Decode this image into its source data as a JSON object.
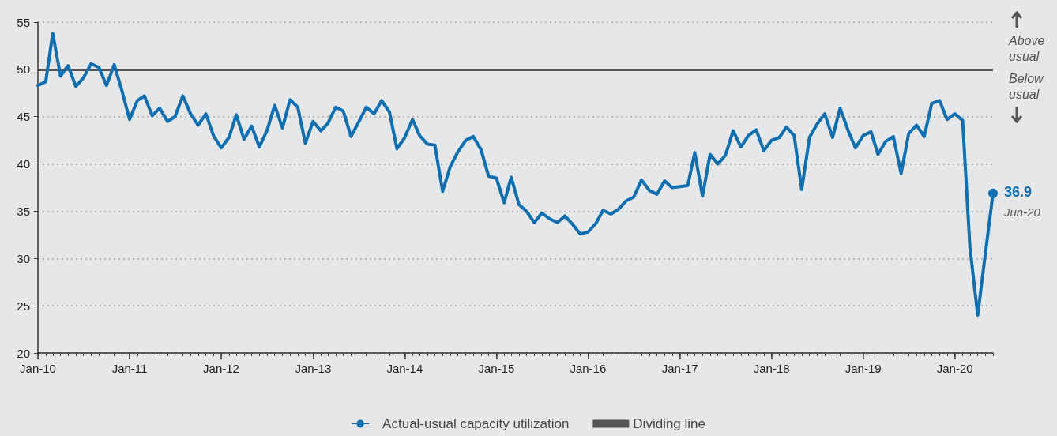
{
  "chart_data": {
    "type": "line",
    "x": [
      "2010-01",
      "2010-02",
      "2010-03",
      "2010-04",
      "2010-05",
      "2010-06",
      "2010-07",
      "2010-08",
      "2010-09",
      "2010-10",
      "2010-11",
      "2010-12",
      "2011-01",
      "2011-02",
      "2011-03",
      "2011-04",
      "2011-05",
      "2011-06",
      "2011-07",
      "2011-08",
      "2011-09",
      "2011-10",
      "2011-11",
      "2011-12",
      "2012-01",
      "2012-02",
      "2012-03",
      "2012-04",
      "2012-05",
      "2012-06",
      "2012-07",
      "2012-08",
      "2012-09",
      "2012-10",
      "2012-11",
      "2012-12",
      "2013-01",
      "2013-02",
      "2013-03",
      "2013-04",
      "2013-05",
      "2013-06",
      "2013-07",
      "2013-08",
      "2013-09",
      "2013-10",
      "2013-11",
      "2013-12",
      "2014-01",
      "2014-02",
      "2014-03",
      "2014-04",
      "2014-05",
      "2014-06",
      "2014-07",
      "2014-08",
      "2014-09",
      "2014-10",
      "2014-11",
      "2014-12",
      "2015-01",
      "2015-02",
      "2015-03",
      "2015-04",
      "2015-05",
      "2015-06",
      "2015-07",
      "2015-08",
      "2015-09",
      "2015-10",
      "2015-11",
      "2015-12",
      "2016-01",
      "2016-02",
      "2016-03",
      "2016-04",
      "2016-05",
      "2016-06",
      "2016-07",
      "2016-08",
      "2016-09",
      "2016-10",
      "2016-11",
      "2016-12",
      "2017-01",
      "2017-02",
      "2017-03",
      "2017-04",
      "2017-05",
      "2017-06",
      "2017-07",
      "2017-08",
      "2017-09",
      "2017-10",
      "2017-11",
      "2017-12",
      "2018-01",
      "2018-02",
      "2018-03",
      "2018-04",
      "2018-05",
      "2018-06",
      "2018-07",
      "2018-08",
      "2018-09",
      "2018-10",
      "2018-11",
      "2018-12",
      "2019-01",
      "2019-02",
      "2019-03",
      "2019-04",
      "2019-05",
      "2019-06",
      "2019-07",
      "2019-08",
      "2019-09",
      "2019-10",
      "2019-11",
      "2019-12",
      "2020-01",
      "2020-02",
      "2020-03",
      "2020-04",
      "2020-05",
      "2020-06"
    ],
    "series": [
      {
        "name": "Actual-usual capacity utilization",
        "color": "#0f6fb0",
        "values": [
          48.3,
          48.7,
          53.8,
          49.3,
          50.4,
          48.2,
          49.1,
          50.6,
          50.2,
          48.3,
          50.5,
          47.8,
          44.7,
          46.7,
          47.2,
          45.1,
          45.9,
          44.5,
          45.0,
          47.2,
          45.3,
          44.1,
          45.3,
          43.0,
          41.7,
          42.8,
          45.2,
          42.6,
          44.0,
          41.8,
          43.5,
          46.2,
          43.8,
          46.8,
          46.0,
          42.2,
          44.5,
          43.5,
          44.3,
          46.0,
          45.6,
          42.9,
          44.4,
          46.0,
          45.3,
          46.7,
          45.5,
          41.6,
          42.8,
          44.7,
          43.0,
          42.1,
          42.0,
          37.1,
          39.7,
          41.3,
          42.5,
          42.9,
          41.5,
          38.7,
          38.5,
          35.9,
          38.6,
          35.7,
          35.0,
          33.8,
          34.8,
          34.2,
          33.8,
          34.5,
          33.6,
          32.6,
          32.8,
          33.7,
          35.1,
          34.7,
          35.2,
          36.1,
          36.5,
          38.3,
          37.2,
          36.8,
          38.2,
          37.5,
          37.6,
          37.7,
          41.2,
          36.6,
          41.0,
          40.0,
          40.9,
          43.5,
          41.8,
          43.0,
          43.6,
          41.4,
          42.5,
          42.8,
          43.9,
          43.0,
          37.3,
          42.8,
          44.2,
          45.3,
          42.8,
          45.9,
          43.6,
          41.7,
          43.0,
          43.4,
          41.0,
          42.4,
          42.9,
          39.0,
          43.2,
          44.1,
          42.9,
          46.4,
          46.7,
          44.7,
          45.3,
          44.6,
          31.2,
          24.0,
          30.4,
          36.9
        ],
        "value_labels": [
          null,
          null,
          null,
          null,
          null,
          null,
          null,
          null,
          null,
          null,
          null,
          null,
          null,
          null,
          null,
          null,
          null,
          null,
          null,
          null,
          null,
          null,
          null,
          null,
          null,
          null,
          null,
          null,
          null,
          null,
          null,
          null,
          null,
          null,
          null,
          null,
          null,
          null,
          null,
          null,
          null,
          null,
          null,
          null,
          null,
          null,
          null,
          null,
          null,
          null,
          null,
          null,
          null,
          null,
          null,
          null,
          null,
          null,
          null,
          null,
          null,
          null,
          null,
          null,
          null,
          null,
          null,
          null,
          null,
          null,
          null,
          null,
          null,
          null,
          null,
          null,
          null,
          null,
          null,
          null,
          null,
          null,
          null,
          null,
          null,
          null,
          null,
          null,
          null,
          null,
          null,
          null,
          null,
          null,
          null,
          null,
          null,
          null,
          null,
          null,
          null,
          null,
          null,
          null,
          null,
          null,
          null,
          null,
          null,
          null,
          null,
          null,
          null,
          null,
          null,
          null,
          null,
          null,
          null,
          null,
          null,
          null,
          null,
          null,
          null,
          "36.9"
        ]
      }
    ],
    "ref_lines": [
      {
        "axis": "y",
        "value": 50,
        "label": "Dividing line",
        "color": "#555555"
      }
    ],
    "annotations": [
      "Above usual",
      "Below usual",
      {
        "text": "Jun-20",
        "x": "2020-06",
        "y": 36.9
      }
    ],
    "xlim": [
      "2010-01",
      "2020-06"
    ],
    "xticks": [
      {
        "value": "2010-01",
        "label": "Jan-10"
      },
      {
        "value": "2011-01",
        "label": "Jan-11"
      },
      {
        "value": "2012-01",
        "label": "Jan-12"
      },
      {
        "value": "2013-01",
        "label": "Jan-13"
      },
      {
        "value": "2014-01",
        "label": "Jan-14"
      },
      {
        "value": "2015-01",
        "label": "Jan-15"
      },
      {
        "value": "2016-01",
        "label": "Jan-16"
      },
      {
        "value": "2017-01",
        "label": "Jan-17"
      },
      {
        "value": "2018-01",
        "label": "Jan-18"
      },
      {
        "value": "2019-01",
        "label": "Jan-19"
      },
      {
        "value": "2020-01",
        "label": "Jan-20"
      }
    ],
    "ylim": [
      20,
      55
    ],
    "yticks": [
      20,
      25,
      30,
      35,
      40,
      45,
      50,
      55
    ],
    "grid": "y",
    "legend": "bottom",
    "line_style": "solid"
  }
}
